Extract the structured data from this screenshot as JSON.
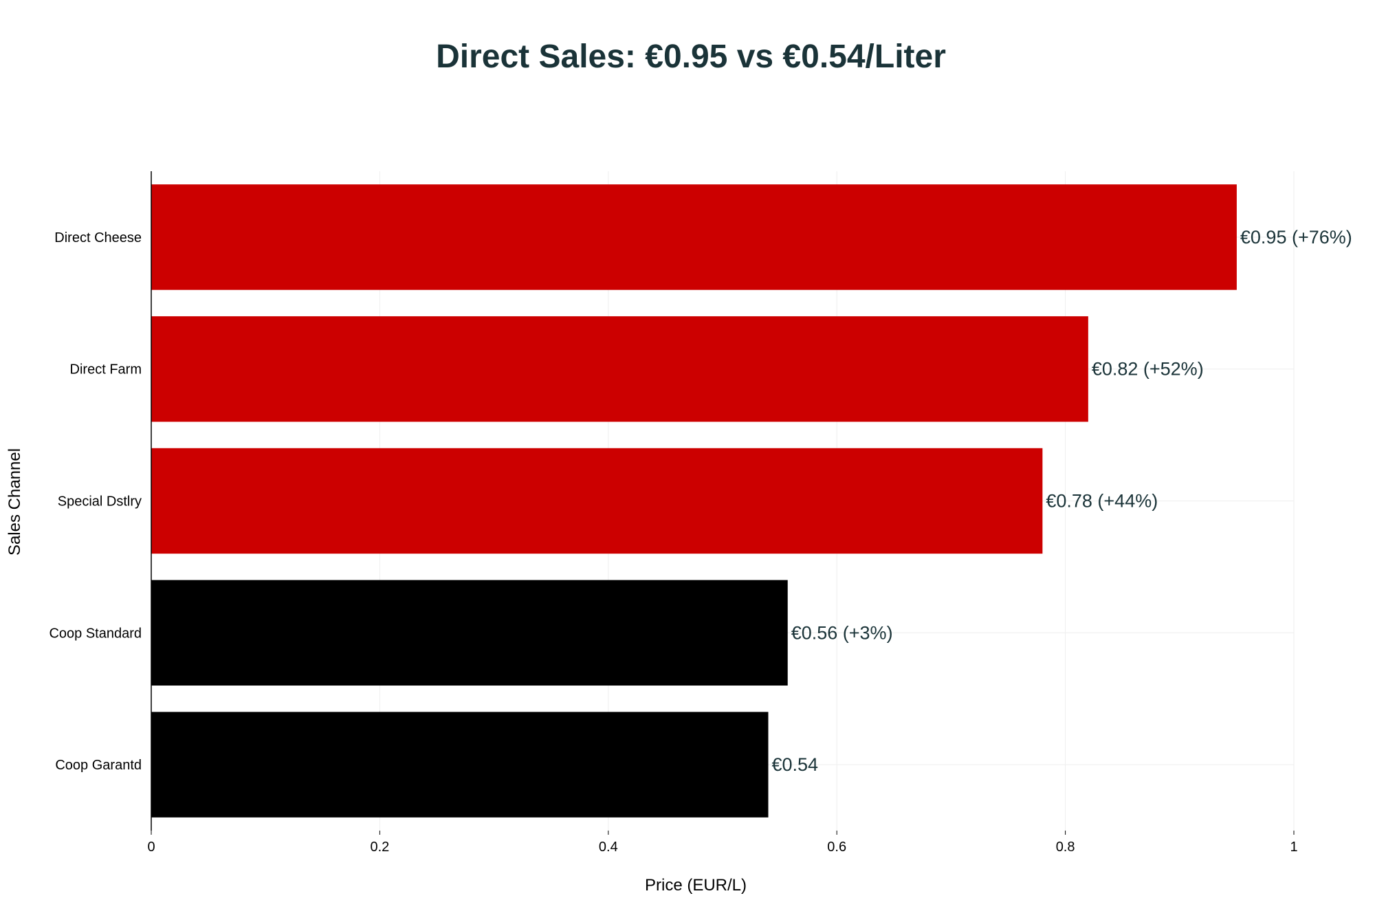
{
  "chart_data": {
    "type": "bar",
    "orientation": "horizontal",
    "title": "Direct Sales: €0.95 vs €0.54/Liter",
    "xlabel": "Price (EUR/L)",
    "ylabel": "Sales Channel",
    "categories": [
      "Direct Cheese",
      "Direct Farm",
      "Special Dstlry",
      "Coop Standard",
      "Coop Garantd"
    ],
    "values": [
      0.95,
      0.82,
      0.78,
      0.557,
      0.54
    ],
    "data_labels": [
      "€0.95 (+76%)",
      "€0.82 (+52%)",
      "€0.78 (+44%)",
      "€0.56 (+3%)",
      "€0.54"
    ],
    "bar_colors": [
      "#cc0000",
      "#cc0000",
      "#cc0000",
      "#000000",
      "#000000"
    ],
    "xlim": [
      0,
      1
    ],
    "xticks": [
      0,
      0.2,
      0.4,
      0.6,
      0.8,
      1
    ],
    "xtick_labels": [
      "0",
      "0.2",
      "0.4",
      "0.6",
      "0.8",
      "1"
    ],
    "grid": true,
    "legend": "none",
    "colors": {
      "title": "#1a3338",
      "data_label": "#1a3338",
      "axis_text": "#000000",
      "grid": "#eeeeee"
    }
  }
}
